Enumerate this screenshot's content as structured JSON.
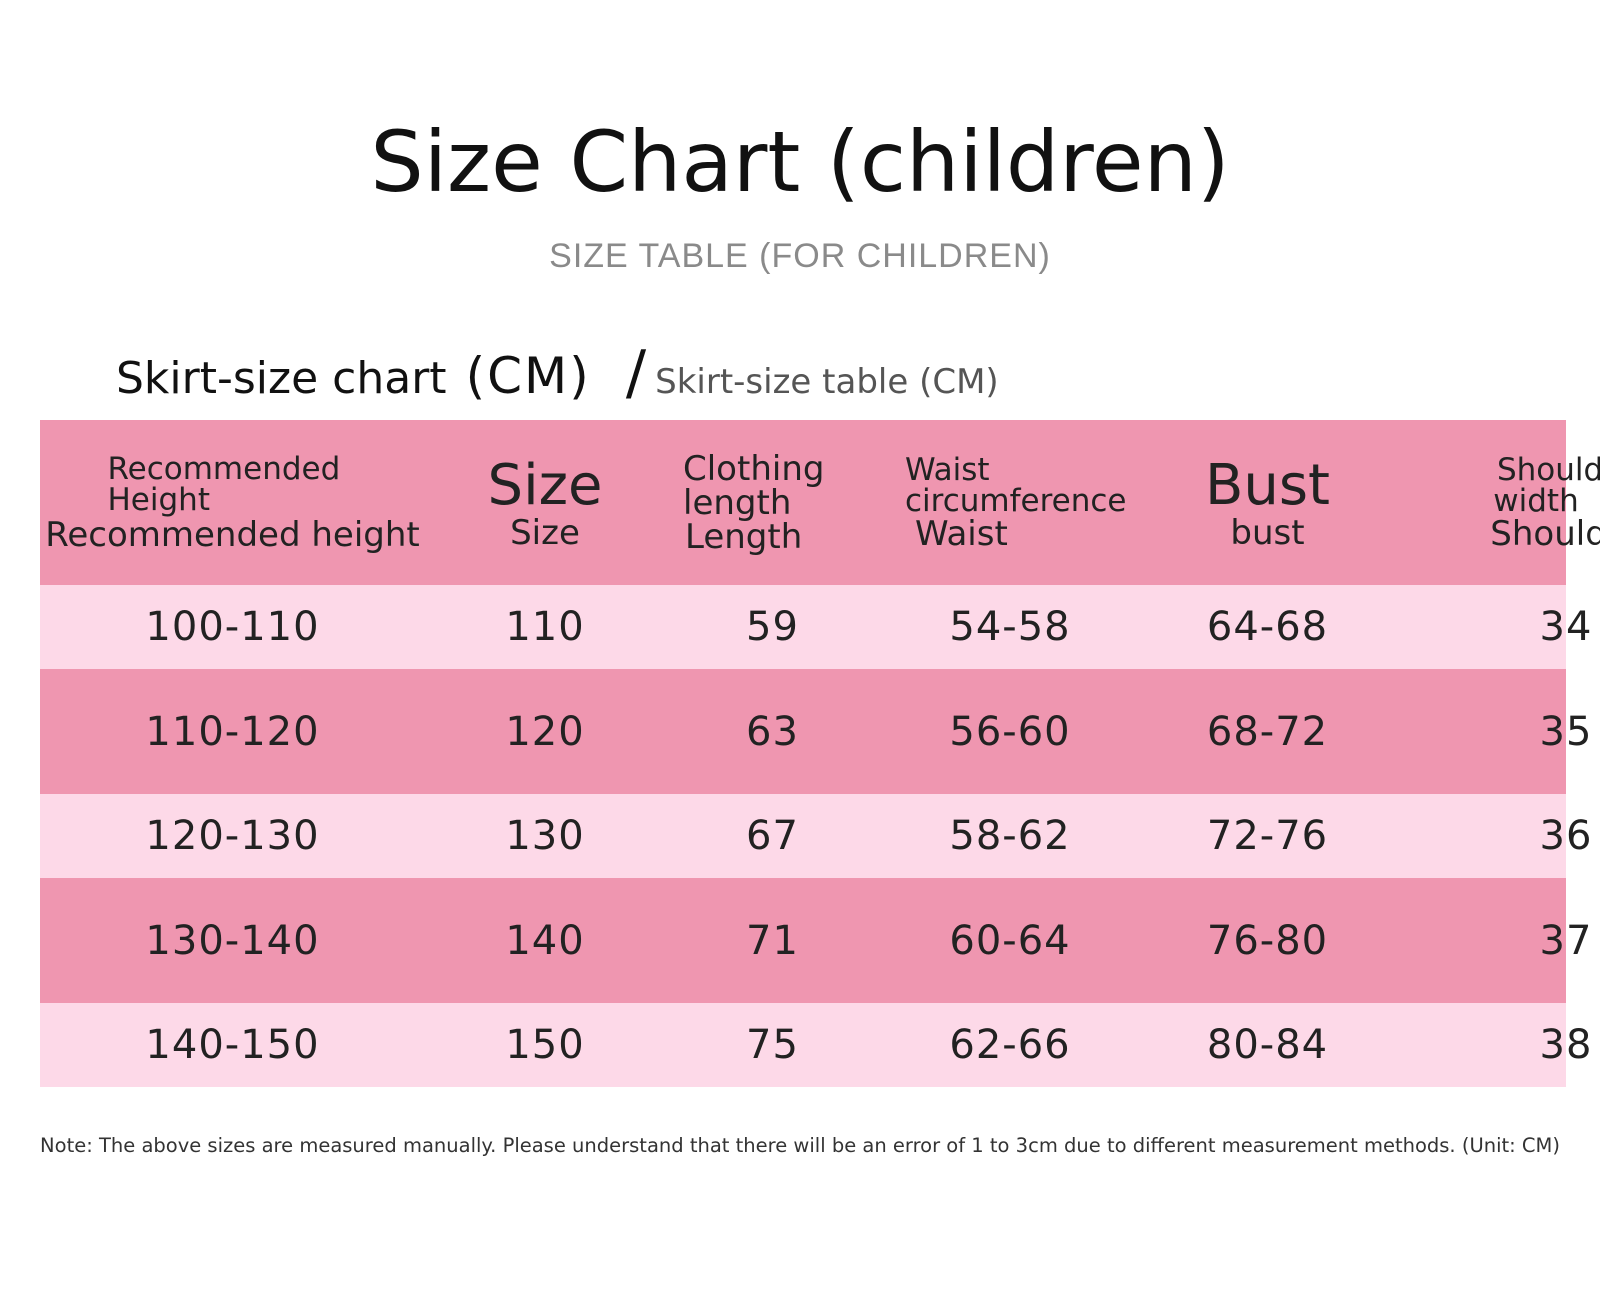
{
  "title": "Size Chart (children)",
  "subtitle": "SIZE TABLE (FOR CHILDREN)",
  "section": {
    "label": "Skirt-size chart",
    "unit": "(CM)",
    "slash": "/",
    "alt_label": "Skirt-size table (CM)"
  },
  "table": {
    "headers": [
      {
        "lines": [
          "Recommended",
          "Height",
          "Recommended height"
        ]
      },
      {
        "lines": [
          "Size",
          "Size"
        ]
      },
      {
        "lines": [
          "Clothing",
          "length",
          "Length"
        ]
      },
      {
        "lines": [
          "Waist",
          "circumference",
          "Waist"
        ]
      },
      {
        "lines": [
          "Bust",
          "bust"
        ]
      },
      {
        "lines": [
          "Shoulder",
          "width",
          "Shoulder"
        ]
      }
    ],
    "rows": [
      [
        "100-110",
        "110",
        "59",
        "54-58",
        "64-68",
        "34"
      ],
      [
        "110-120",
        "120",
        "63",
        "56-60",
        "68-72",
        "35"
      ],
      [
        "120-130",
        "130",
        "67",
        "58-62",
        "72-76",
        "36"
      ],
      [
        "130-140",
        "140",
        "71",
        "60-64",
        "76-80",
        "37"
      ],
      [
        "140-150",
        "150",
        "75",
        "62-66",
        "80-84",
        "38"
      ]
    ]
  },
  "note": "Note: The above sizes are measured manually. Please understand that there will be an error of 1 to 3cm due to different measurement methods. (Unit: CM)",
  "colors": {
    "header_pink": "#ef96b0",
    "row_light": "#fdd9e8",
    "row_dark": "#ef96b0"
  }
}
